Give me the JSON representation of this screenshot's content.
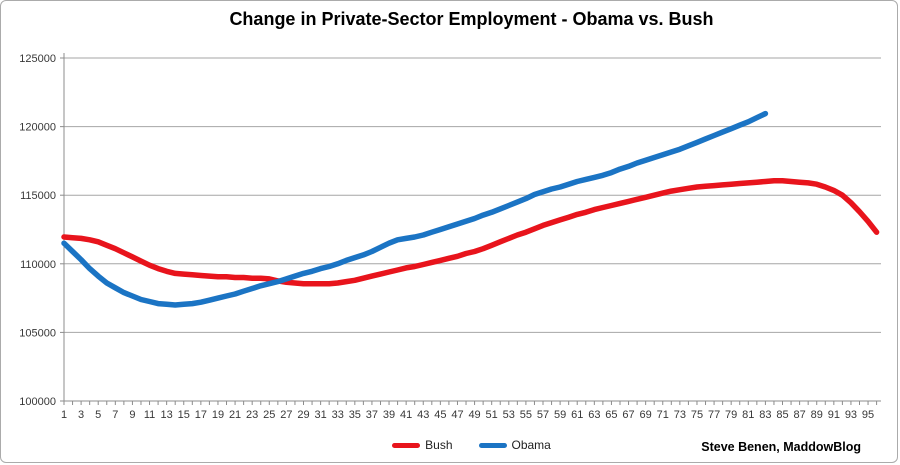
{
  "chart_data": {
    "type": "line",
    "title": "Change in Private-Sector Employment - Obama vs. Bush",
    "xlabel": "",
    "ylabel": "",
    "xlim": [
      1,
      96
    ],
    "ylim": [
      100000,
      125000
    ],
    "y_ticks": [
      100000,
      105000,
      110000,
      115000,
      120000,
      125000
    ],
    "x_tick_labels": [
      "1",
      "3",
      "5",
      "7",
      "9",
      "11",
      "13",
      "15",
      "17",
      "19",
      "21",
      "23",
      "25",
      "27",
      "29",
      "31",
      "33",
      "35",
      "37",
      "39",
      "41",
      "43",
      "45",
      "47",
      "49",
      "51",
      "53",
      "55",
      "57",
      "59",
      "61",
      "63",
      "65",
      "67",
      "69",
      "71",
      "73",
      "75",
      "77",
      "79",
      "81",
      "83",
      "85",
      "87",
      "89",
      "91",
      "93",
      "95"
    ],
    "grid": "horizontal",
    "legend_position": "bottom-center",
    "credit": "Steve Benen, MaddowBlog",
    "colors": {
      "bush_red": "#e8141c",
      "obama_blue": "#1b74c4",
      "gridline": "#a6a6a6",
      "axis": "#8c8c8c",
      "tick_text": "#383838"
    },
    "series": [
      {
        "name": "Bush",
        "color": "#e8141c",
        "start_month": 1,
        "values": [
          111950,
          111900,
          111850,
          111750,
          111600,
          111350,
          111100,
          110800,
          110500,
          110200,
          109900,
          109650,
          109450,
          109300,
          109250,
          109200,
          109150,
          109100,
          109050,
          109050,
          109000,
          109000,
          108950,
          108950,
          108900,
          108750,
          108650,
          108600,
          108550,
          108550,
          108550,
          108550,
          108600,
          108700,
          108800,
          108950,
          109100,
          109250,
          109400,
          109550,
          109700,
          109800,
          109950,
          110100,
          110250,
          110400,
          110550,
          110750,
          110900,
          111100,
          111350,
          111600,
          111850,
          112100,
          112300,
          112550,
          112800,
          113000,
          113200,
          113400,
          113600,
          113750,
          113950,
          114100,
          114250,
          114400,
          114550,
          114700,
          114850,
          115000,
          115150,
          115300,
          115400,
          115500,
          115600,
          115650,
          115700,
          115750,
          115800,
          115850,
          115900,
          115950,
          116000,
          116050,
          116050,
          116000,
          115950,
          115900,
          115800,
          115600,
          115350,
          115000,
          114450,
          113800,
          113100,
          112300
        ]
      },
      {
        "name": "Obama",
        "color": "#1b74c4",
        "start_month": 1,
        "values": [
          111500,
          110900,
          110300,
          109650,
          109100,
          108600,
          108250,
          107900,
          107650,
          107400,
          107250,
          107100,
          107050,
          107000,
          107050,
          107100,
          107200,
          107350,
          107500,
          107650,
          107800,
          108000,
          108200,
          108400,
          108550,
          108700,
          108900,
          109100,
          109300,
          109450,
          109650,
          109800,
          110000,
          110250,
          110450,
          110650,
          110900,
          111200,
          111500,
          111750,
          111850,
          111950,
          112100,
          112300,
          112500,
          112700,
          112900,
          113100,
          113300,
          113550,
          113750,
          114000,
          114250,
          114500,
          114750,
          115050,
          115250,
          115450,
          115600,
          115800,
          116000,
          116150,
          116300,
          116450,
          116650,
          116900,
          117100,
          117350,
          117550,
          117750,
          117950,
          118150,
          118350,
          118600,
          118850,
          119100,
          119350,
          119600,
          119850,
          120100,
          120350,
          120650,
          120950
        ]
      }
    ]
  }
}
